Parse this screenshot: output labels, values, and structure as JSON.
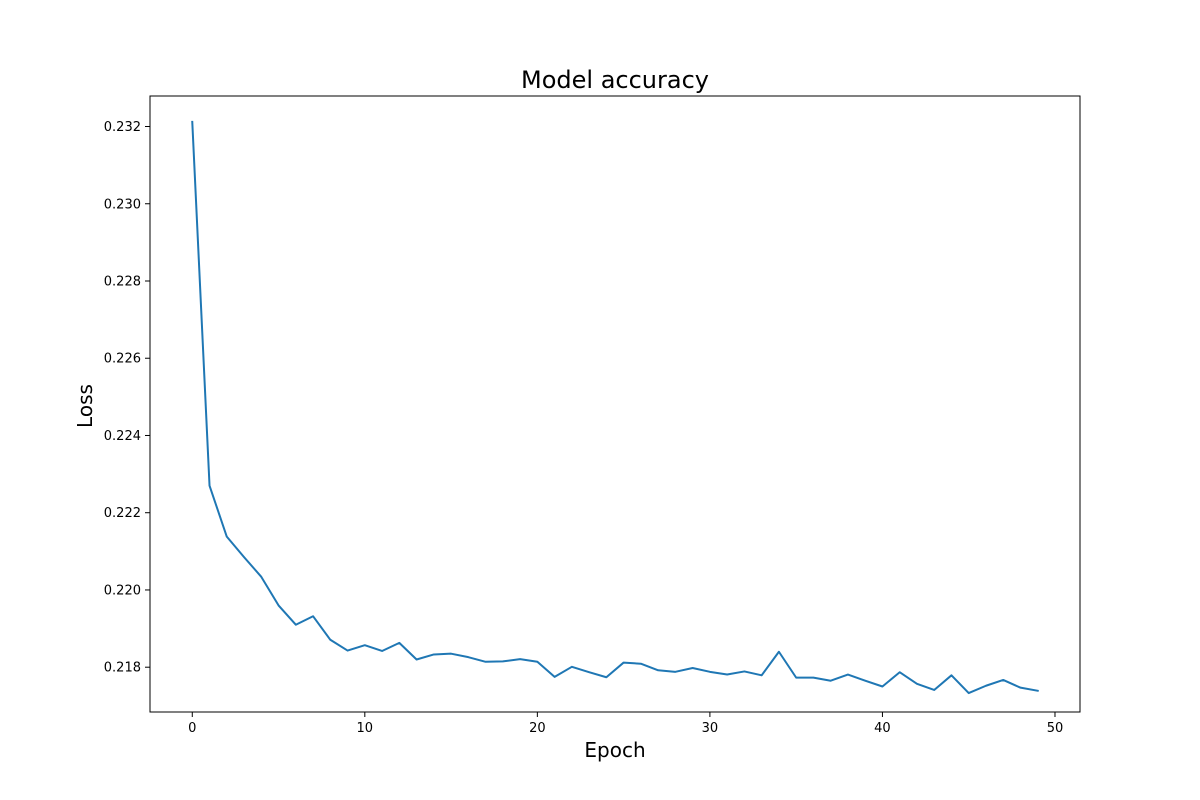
{
  "chart_data": {
    "type": "line",
    "title": "Model accuracy",
    "xlabel": "Epoch",
    "ylabel": "Loss",
    "xlim": [
      -2.45,
      51.45
    ],
    "ylim": [
      0.21684,
      0.23279
    ],
    "xticks": [
      0,
      10,
      20,
      30,
      40,
      50
    ],
    "yticks": [
      0.218,
      0.22,
      0.222,
      0.224,
      0.226,
      0.228,
      0.23,
      0.232
    ],
    "grid": false,
    "legend": "none",
    "line_color": "#1f77b4",
    "series": [
      {
        "x": [
          0,
          1,
          2,
          3,
          4,
          5,
          6,
          7,
          8,
          9,
          10,
          11,
          12,
          13,
          14,
          15,
          16,
          17,
          18,
          19,
          20,
          21,
          22,
          23,
          24,
          25,
          26,
          27,
          28,
          29,
          30,
          31,
          32,
          33,
          34,
          35,
          36,
          37,
          38,
          39,
          40,
          41,
          42,
          43,
          44,
          45,
          46,
          47,
          48,
          49
        ],
        "values": [
          0.23212,
          0.2227,
          0.22138,
          0.22085,
          0.22034,
          0.2196,
          0.2191,
          0.21932,
          0.21871,
          0.21843,
          0.21857,
          0.21842,
          0.21863,
          0.2182,
          0.21833,
          0.21835,
          0.21826,
          0.21814,
          0.21815,
          0.21821,
          0.21814,
          0.21775,
          0.21801,
          0.21787,
          0.21774,
          0.21812,
          0.21809,
          0.21792,
          0.21788,
          0.21798,
          0.21788,
          0.21781,
          0.21789,
          0.21779,
          0.2184,
          0.21773,
          0.21773,
          0.21765,
          0.21781,
          0.21765,
          0.2175,
          0.21787,
          0.21757,
          0.21741,
          0.21779,
          0.21733,
          0.21752,
          0.21767,
          0.21747,
          0.21739
        ]
      }
    ]
  }
}
